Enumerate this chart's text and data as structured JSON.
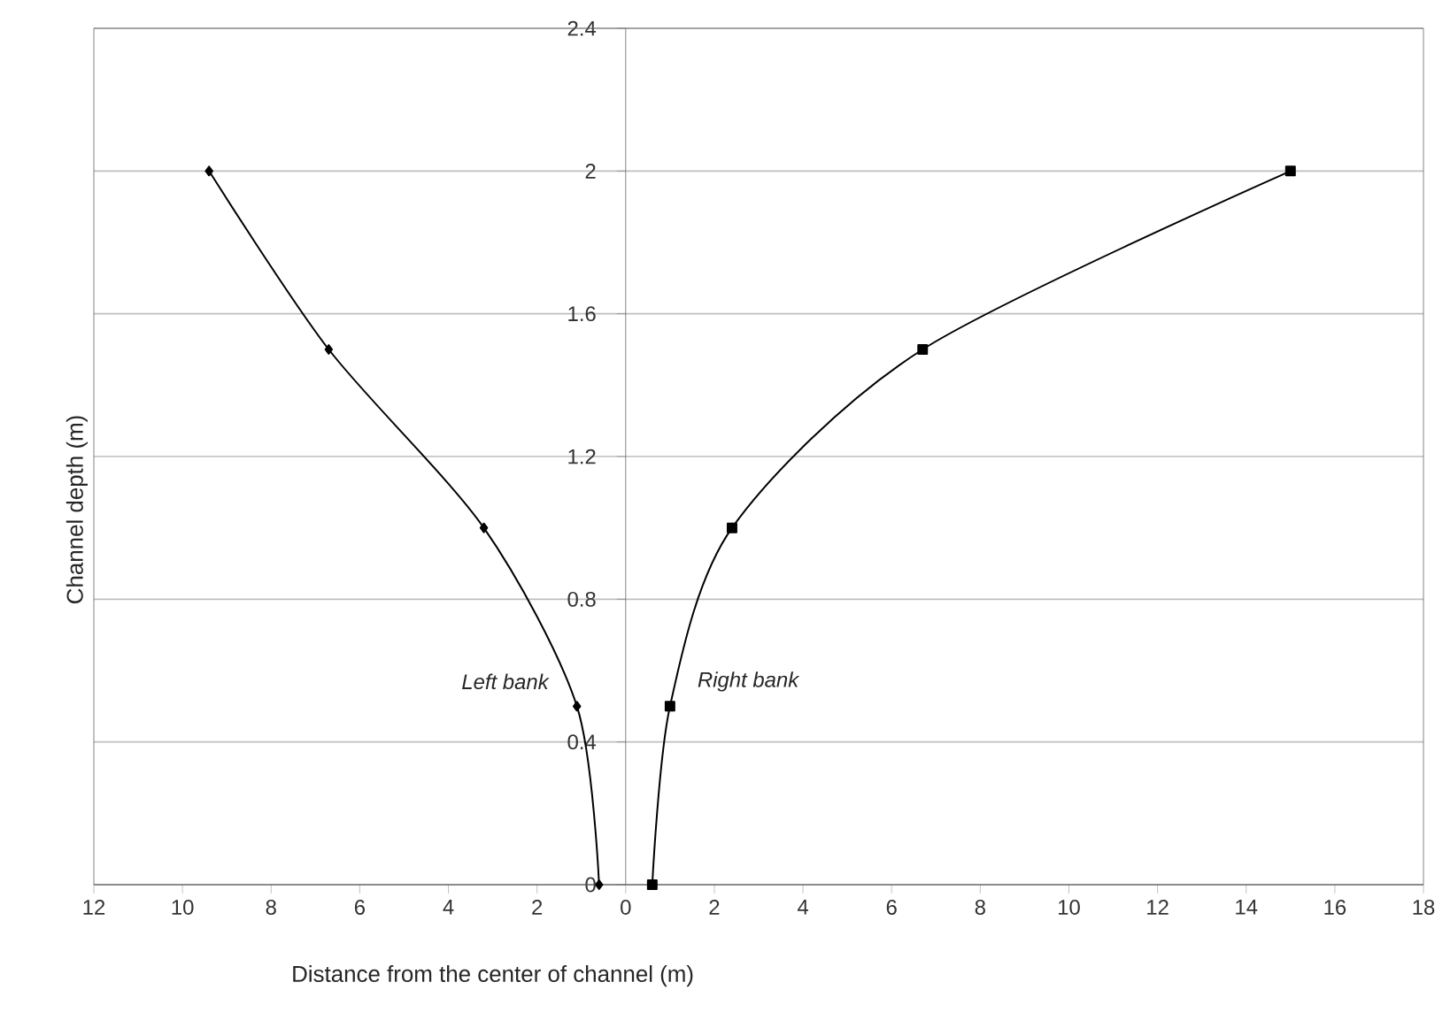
{
  "chart_data": {
    "type": "line",
    "xlabel": "Distance from the center of channel (m)",
    "ylabel": "Channel depth (m)",
    "xlim": [
      -12,
      18
    ],
    "xticks": [
      {
        "value": -12,
        "label": "12"
      },
      {
        "value": -10,
        "label": "10"
      },
      {
        "value": -8,
        "label": "8"
      },
      {
        "value": -6,
        "label": "6"
      },
      {
        "value": -4,
        "label": "4"
      },
      {
        "value": -2,
        "label": "2"
      },
      0,
      2,
      4,
      6,
      8,
      10,
      12,
      14,
      16,
      18
    ],
    "ylim": [
      0,
      2.4
    ],
    "yticks": [
      0,
      0.4,
      0.8,
      1.2,
      1.6,
      2,
      2.4
    ],
    "grid": "y",
    "series": [
      {
        "name": "*Left bank*",
        "color": "#000000",
        "marker": "diamond",
        "x": [
          -9.4,
          -6.7,
          -3.2,
          -1.1,
          -0.6
        ],
        "values": [
          2,
          1.5,
          1,
          0.5,
          0
        ]
      },
      {
        "name": "*Right bank*",
        "color": "#000000",
        "marker": "square",
        "x": [
          0.6,
          1.0,
          2.4,
          6.7,
          15.0
        ],
        "values": [
          0,
          0.5,
          1,
          1.5,
          2
        ]
      }
    ]
  }
}
